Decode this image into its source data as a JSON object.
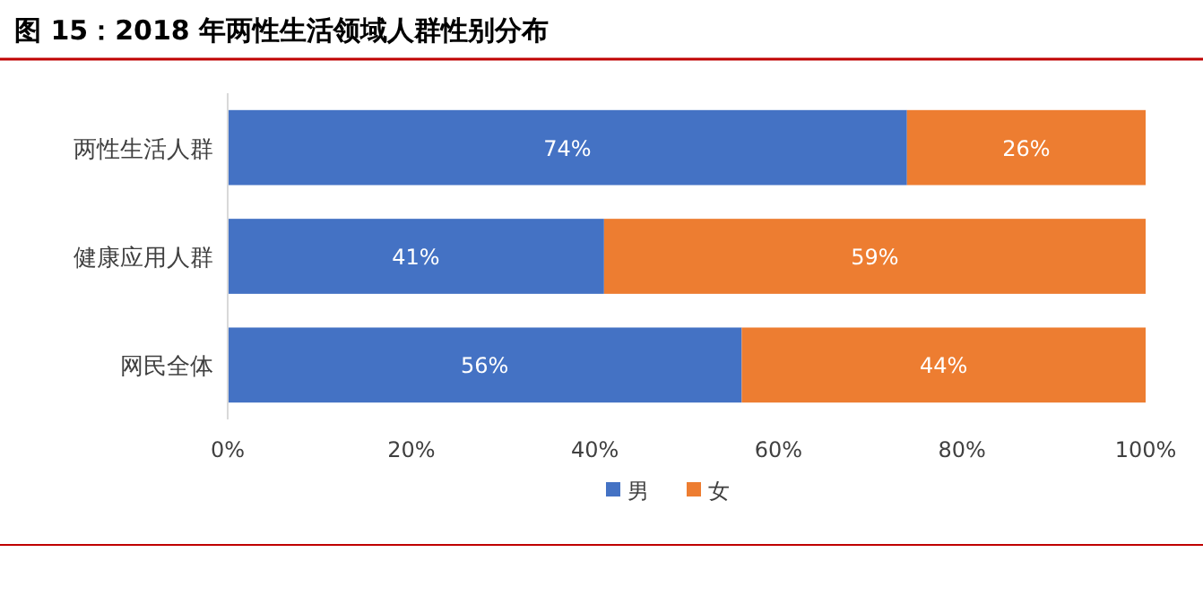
{
  "chart_data": {
    "type": "bar",
    "orientation": "horizontal",
    "stacked": true,
    "title": "图 15：2018 年两性生活领域人群性别分布",
    "categories": [
      "两性生活人群",
      "健康应用人群",
      "网民全体"
    ],
    "series": [
      {
        "name": "男",
        "color": "#4472c4",
        "values": [
          74,
          41,
          56
        ],
        "value_labels": [
          "74%",
          "41%",
          "56%"
        ]
      },
      {
        "name": "女",
        "color": "#ed7d31",
        "values": [
          26,
          59,
          44
        ],
        "value_labels": [
          "26%",
          "59%",
          "44%"
        ]
      }
    ],
    "xlim": [
      0,
      100
    ],
    "xticks": [
      {
        "value": 0,
        "label": "0%"
      },
      {
        "value": 20,
        "label": "20%"
      },
      {
        "value": 40,
        "label": "40%"
      },
      {
        "value": 60,
        "label": "60%"
      },
      {
        "value": 80,
        "label": "80%"
      },
      {
        "value": 100,
        "label": "100%"
      }
    ],
    "legend": "bottom"
  }
}
